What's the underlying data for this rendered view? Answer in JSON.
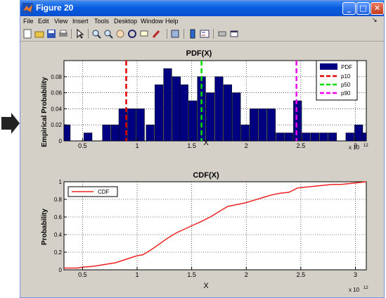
{
  "window": {
    "title": "Figure 20",
    "menu": [
      "File",
      "Edit",
      "View",
      "Insert",
      "Tools",
      "Desktop",
      "Window",
      "Help"
    ],
    "toolbar_icons": [
      "new-figure-icon",
      "open-file-icon",
      "save-icon",
      "print-icon",
      "select-arrow-icon",
      "zoom-in-icon",
      "zoom-out-icon",
      "pan-icon",
      "rotate-3d-icon",
      "data-cursor-icon",
      "brush-icon",
      "link-plot-icon",
      "colorbar-icon",
      "legend-icon",
      "hide-plot-tools-icon",
      "show-plot-tools-icon"
    ],
    "dock_arrow": "↘"
  },
  "chart_data": [
    {
      "type": "bar",
      "title": "PDF(X)",
      "xlabel": "X",
      "ylabel": "Empirical Probability",
      "x_exponent_label": "x 10",
      "x_exponent": "12",
      "xlim": [
        0.33,
        3.1
      ],
      "ylim": [
        0,
        0.1
      ],
      "xticks": [
        0.5,
        1,
        1.5,
        2,
        2.5,
        3
      ],
      "xtick_labels": [
        "0.5",
        "1",
        "1.5",
        "2",
        "2.5",
        "3"
      ],
      "yticks": [
        0,
        0.02,
        0.04,
        0.06,
        0.08
      ],
      "ytick_labels": [
        "0",
        "0.02",
        "0.04",
        "0.06",
        "0.08"
      ],
      "grid": true,
      "legend_position": "top-right",
      "bar_color": "#000080",
      "bars": {
        "x": [
          0.35,
          0.45,
          0.55,
          0.65,
          0.72,
          0.8,
          0.87,
          0.95,
          1.03,
          1.12,
          1.2,
          1.28,
          1.36,
          1.43,
          1.51,
          1.59,
          1.67,
          1.75,
          1.83,
          1.91,
          1.99,
          2.07,
          2.15,
          2.23,
          2.31,
          2.39,
          2.47,
          2.55,
          2.63,
          2.71,
          2.79,
          2.87,
          2.95,
          3.03,
          3.1
        ],
        "values": [
          0.02,
          0,
          0.01,
          0,
          0.02,
          0.02,
          0.04,
          0.04,
          0.04,
          0.02,
          0.07,
          0.09,
          0.08,
          0.07,
          0.05,
          0.08,
          0.06,
          0.08,
          0.07,
          0.06,
          0.02,
          0.04,
          0.04,
          0.04,
          0.01,
          0.01,
          0.05,
          0.01,
          0.01,
          0.01,
          0.01,
          0,
          0.01,
          0.02,
          0.01
        ]
      },
      "bar_width": 0.075,
      "percentile_lines": [
        {
          "name": "p10",
          "x": 0.9,
          "color": "#e00000"
        },
        {
          "name": "p50",
          "x": 1.59,
          "color": "#00dd00"
        },
        {
          "name": "p90",
          "x": 2.46,
          "color": "#ee00ee"
        }
      ],
      "legend": [
        "PDF",
        "p10",
        "p50",
        "p90"
      ]
    },
    {
      "type": "line",
      "title": "CDF(X)",
      "xlabel": "X",
      "ylabel": "Probability",
      "x_exponent_label": "x 10",
      "x_exponent": "12",
      "xlim": [
        0.33,
        3.1
      ],
      "ylim": [
        0,
        1
      ],
      "xticks": [
        0.5,
        1,
        1.5,
        2,
        2.5,
        3
      ],
      "xtick_labels": [
        "0.5",
        "1",
        "1.5",
        "2",
        "2.5",
        "3"
      ],
      "yticks": [
        0,
        0.2,
        0.4,
        0.6,
        0.8,
        1
      ],
      "ytick_labels": [
        "0",
        "0.2",
        "0.4",
        "0.6",
        "0.8",
        "1"
      ],
      "grid": true,
      "legend_position": "top-left",
      "line_color": "#ee2222",
      "series": [
        {
          "name": "CDF",
          "x": [
            0.33,
            0.45,
            0.5,
            0.6,
            0.7,
            0.8,
            0.9,
            1.0,
            1.05,
            1.12,
            1.2,
            1.28,
            1.36,
            1.43,
            1.5,
            1.59,
            1.67,
            1.75,
            1.83,
            1.91,
            1.99,
            2.07,
            2.15,
            2.23,
            2.31,
            2.39,
            2.47,
            2.55,
            2.63,
            2.71,
            2.79,
            2.87,
            2.95,
            3.03,
            3.1
          ],
          "y": [
            0.02,
            0.02,
            0.03,
            0.04,
            0.06,
            0.08,
            0.12,
            0.16,
            0.17,
            0.22,
            0.29,
            0.36,
            0.42,
            0.46,
            0.5,
            0.55,
            0.6,
            0.66,
            0.72,
            0.74,
            0.76,
            0.79,
            0.82,
            0.85,
            0.87,
            0.88,
            0.93,
            0.94,
            0.95,
            0.96,
            0.97,
            0.97,
            0.98,
            0.99,
            1.0
          ]
        }
      ]
    }
  ]
}
